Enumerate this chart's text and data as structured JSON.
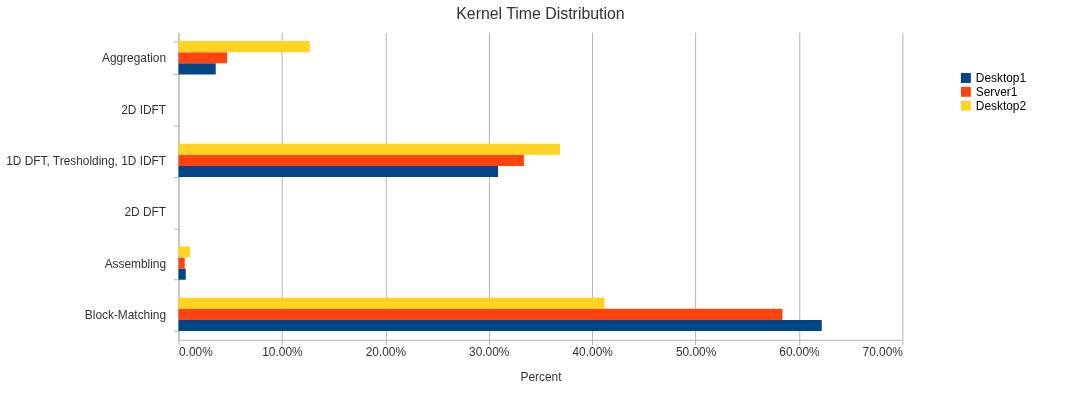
{
  "chart_data": {
    "type": "bar",
    "orientation": "horizontal",
    "title": "Kernel Time Distribution",
    "xlabel": "Percent",
    "categories": [
      "Aggregation",
      "2D IDFT",
      "1D DFT, Tresholding, 1D IDFT",
      "2D DFT",
      "Assembling",
      "Block-Matching"
    ],
    "series": [
      {
        "name": "Desktop1",
        "color": "#004586",
        "values": [
          3.6,
          0,
          30.9,
          0,
          0.7,
          62.2
        ]
      },
      {
        "name": "Server1",
        "color": "#ff420e",
        "values": [
          4.7,
          0,
          33.4,
          0,
          0.6,
          58.4
        ]
      },
      {
        "name": "Desktop2",
        "color": "#ffd320",
        "values": [
          12.7,
          0,
          36.9,
          0,
          1.1,
          41.2
        ]
      }
    ],
    "xlim": [
      0,
      70
    ],
    "xticks": [
      {
        "value": 0,
        "label": "0.00%"
      },
      {
        "value": 10,
        "label": "10.00%"
      },
      {
        "value": 20,
        "label": "20.00%"
      },
      {
        "value": 30,
        "label": "30.00%"
      },
      {
        "value": 40,
        "label": "40.00%"
      },
      {
        "value": 50,
        "label": "50.00%"
      },
      {
        "value": 60,
        "label": "60.00%"
      },
      {
        "value": 70,
        "label": "70.00%"
      }
    ],
    "grid": "x",
    "legend": "right"
  }
}
